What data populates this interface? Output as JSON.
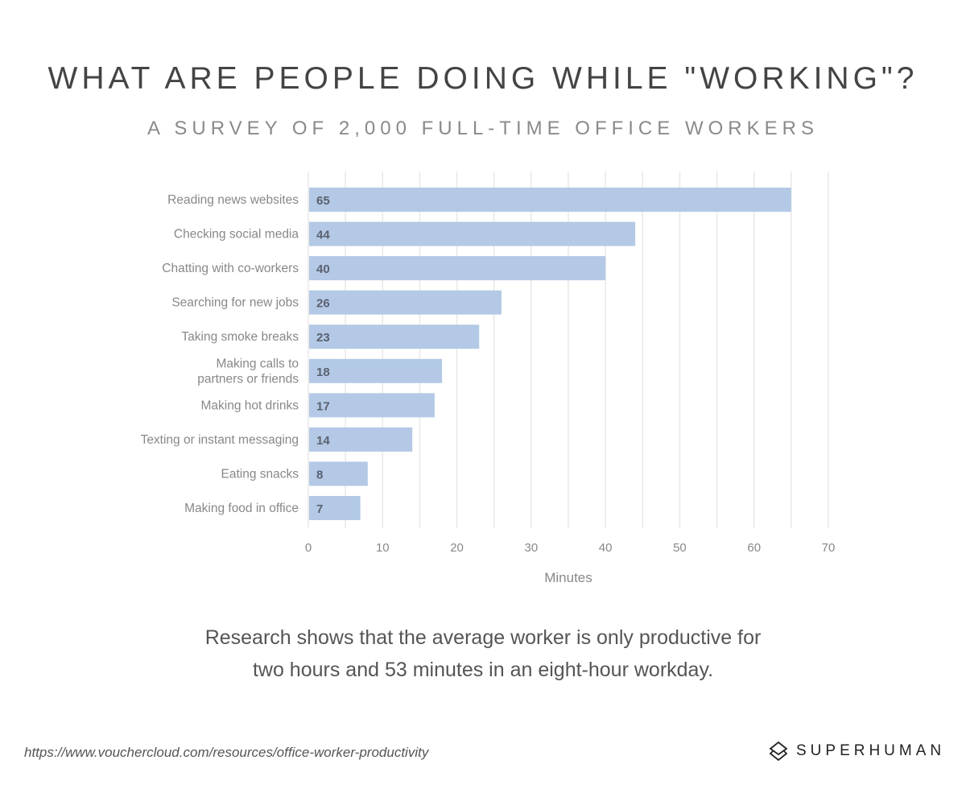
{
  "title": "WHAT ARE PEOPLE DOING WHILE \"WORKING\"?",
  "subtitle": "A SURVEY OF 2,000 FULL-TIME OFFICE WORKERS",
  "chart_data": {
    "type": "bar",
    "orientation": "horizontal",
    "categories": [
      "Reading news websites",
      "Checking social media",
      "Chatting with co-workers",
      "Searching for new jobs",
      "Taking smoke breaks",
      "Making calls to partners or friends",
      "Making hot drinks",
      "Texting or instant messaging",
      "Eating snacks",
      "Making food in office"
    ],
    "category_lines": [
      [
        "Reading news websites"
      ],
      [
        "Checking social media"
      ],
      [
        "Chatting with co-workers"
      ],
      [
        "Searching for new jobs"
      ],
      [
        "Taking smoke breaks"
      ],
      [
        "Making calls to",
        "partners or friends"
      ],
      [
        "Making hot drinks"
      ],
      [
        "Texting or instant messaging"
      ],
      [
        "Eating snacks"
      ],
      [
        "Making food in office"
      ]
    ],
    "values": [
      65,
      44,
      40,
      26,
      23,
      18,
      17,
      14,
      8,
      7
    ],
    "xlabel": "Minutes",
    "xlim": [
      0,
      70
    ],
    "xticks": [
      0,
      10,
      20,
      30,
      40,
      50,
      60,
      70
    ],
    "grid": true,
    "bar_color": "#b3c9e5"
  },
  "caption_lines": [
    "Research shows that the average worker is only productive for",
    "two hours and 53 minutes in an eight-hour workday."
  ],
  "source": "https://www.vouchercloud.com/resources/office-worker-productivity",
  "logo": "SUPERHUMAN"
}
